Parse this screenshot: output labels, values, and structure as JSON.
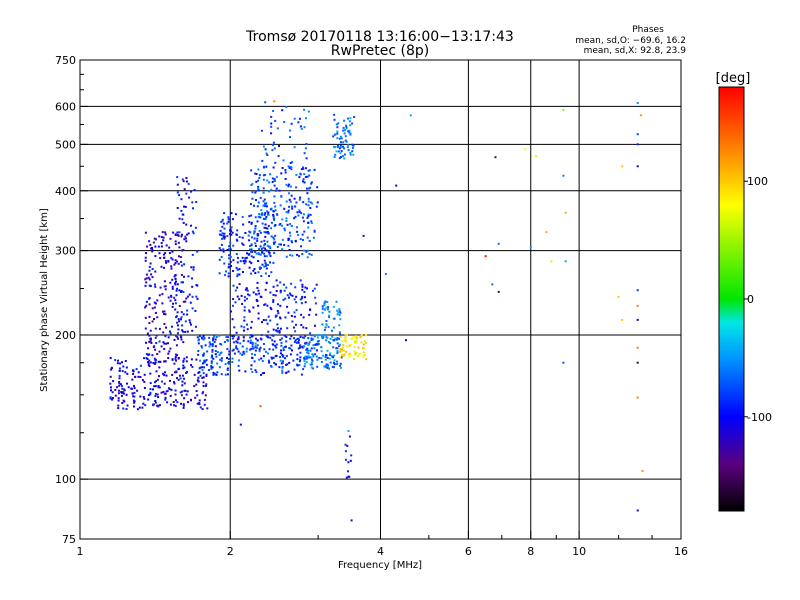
{
  "chart_data": {
    "type": "scatter",
    "title": "Tromsø 20170118 13:16:00−13:17:43",
    "subtitle": "RwPretec (8p)",
    "xlabel": "Frequency [MHz]",
    "ylabel": "Stationary phase Virtual Height [km]",
    "x_scale": "log",
    "y_scale": "log",
    "xlim": [
      1,
      16
    ],
    "ylim": [
      75,
      750
    ],
    "x_ticks": [
      1,
      2,
      4,
      6,
      8,
      10,
      16
    ],
    "y_ticks": [
      75,
      100,
      200,
      300,
      400,
      500,
      600,
      750
    ],
    "x_grid": [
      2,
      4,
      6,
      8,
      10
    ],
    "y_grid": [
      100,
      200,
      300,
      400,
      500,
      600
    ],
    "grid": true,
    "legend": {
      "title": "Phases",
      "line1": "mean, sd,O: −69.6, 16.2",
      "line2": "mean, sd,X:  92.8, 23.9",
      "position": "top-right"
    },
    "colorbar": {
      "label": "[deg]",
      "range": [
        -180,
        180
      ],
      "ticks": [
        100,
        0,
        -100
      ],
      "colors": [
        "#000000",
        "#5a0080",
        "#0000ff",
        "#0096ff",
        "#00e6e6",
        "#00e600",
        "#ffff00",
        "#ff9600",
        "#ff0000"
      ]
    },
    "clusters": [
      {
        "x": 1.15,
        "x2": 1.8,
        "y": 140,
        "y2": 180,
        "n": 260,
        "phase": -105
      },
      {
        "x": 1.35,
        "x2": 1.62,
        "y": 175,
        "y2": 330,
        "n": 220,
        "phase": -110
      },
      {
        "x": 1.55,
        "x2": 1.72,
        "y": 200,
        "y2": 440,
        "n": 90,
        "phase": -100
      },
      {
        "x": 1.72,
        "x2": 2.8,
        "y": 165,
        "y2": 200,
        "n": 240,
        "phase": -80
      },
      {
        "x": 2.0,
        "x2": 3.0,
        "y": 185,
        "y2": 260,
        "n": 200,
        "phase": -95
      },
      {
        "x": 1.9,
        "x2": 2.45,
        "y": 265,
        "y2": 360,
        "n": 180,
        "phase": -90
      },
      {
        "x": 2.2,
        "x2": 3.0,
        "y": 290,
        "y2": 450,
        "n": 260,
        "phase": -75
      },
      {
        "x": 2.3,
        "x2": 2.9,
        "y": 430,
        "y2": 600,
        "n": 50,
        "phase": -75
      },
      {
        "x": 2.8,
        "x2": 3.35,
        "y": 170,
        "y2": 200,
        "n": 130,
        "phase": -60
      },
      {
        "x": 3.05,
        "x2": 3.35,
        "y": 200,
        "y2": 235,
        "n": 40,
        "phase": -55
      },
      {
        "x": 3.2,
        "x2": 3.55,
        "y": 465,
        "y2": 580,
        "n": 70,
        "phase": -60
      },
      {
        "x": 3.3,
        "x2": 3.75,
        "y": 178,
        "y2": 200,
        "n": 70,
        "phase": 85
      },
      {
        "x": 3.4,
        "x2": 3.5,
        "y": 100,
        "y2": 124,
        "n": 12,
        "phase": -100
      }
    ],
    "scattered_points": [
      {
        "x": 2.35,
        "y": 612,
        "phase": -75
      },
      {
        "x": 2.45,
        "y": 615,
        "phase": 125
      },
      {
        "x": 4.3,
        "y": 410,
        "phase": -110
      },
      {
        "x": 4.6,
        "y": 575,
        "phase": -40
      },
      {
        "x": 3.7,
        "y": 322,
        "phase": -120
      },
      {
        "x": 4.1,
        "y": 268,
        "phase": -60
      },
      {
        "x": 4.5,
        "y": 195,
        "phase": -110
      },
      {
        "x": 6.5,
        "y": 292,
        "phase": 175
      },
      {
        "x": 6.8,
        "y": 470,
        "phase": -150
      },
      {
        "x": 6.9,
        "y": 310,
        "phase": -60
      },
      {
        "x": 6.7,
        "y": 255,
        "phase": -60
      },
      {
        "x": 6.9,
        "y": 246,
        "phase": -150
      },
      {
        "x": 7.8,
        "y": 488,
        "phase": 80
      },
      {
        "x": 8.2,
        "y": 472,
        "phase": 70
      },
      {
        "x": 8.0,
        "y": 305,
        "phase": -50
      },
      {
        "x": 8.6,
        "y": 328,
        "phase": 110
      },
      {
        "x": 8.8,
        "y": 285,
        "phase": 90
      },
      {
        "x": 9.3,
        "y": 590,
        "phase": 40
      },
      {
        "x": 9.3,
        "y": 430,
        "phase": -60
      },
      {
        "x": 9.4,
        "y": 360,
        "phase": 110
      },
      {
        "x": 9.4,
        "y": 285,
        "phase": -40
      },
      {
        "x": 9.3,
        "y": 175,
        "phase": -70
      },
      {
        "x": 12.2,
        "y": 450,
        "phase": 100
      },
      {
        "x": 12.0,
        "y": 240,
        "phase": 100
      },
      {
        "x": 12.2,
        "y": 215,
        "phase": 100
      },
      {
        "x": 13.1,
        "y": 610,
        "phase": -50
      },
      {
        "x": 13.1,
        "y": 450,
        "phase": -110
      },
      {
        "x": 13.3,
        "y": 575,
        "phase": 120
      },
      {
        "x": 13.1,
        "y": 525,
        "phase": -80
      },
      {
        "x": 13.1,
        "y": 500,
        "phase": -90
      },
      {
        "x": 13.1,
        "y": 248,
        "phase": -80
      },
      {
        "x": 13.1,
        "y": 230,
        "phase": 130
      },
      {
        "x": 13.1,
        "y": 215,
        "phase": -110
      },
      {
        "x": 13.1,
        "y": 188,
        "phase": 130
      },
      {
        "x": 13.1,
        "y": 175,
        "phase": -150
      },
      {
        "x": 13.1,
        "y": 148,
        "phase": 130
      },
      {
        "x": 13.4,
        "y": 104,
        "phase": 120
      },
      {
        "x": 13.1,
        "y": 86,
        "phase": -120
      },
      {
        "x": 3.5,
        "y": 82,
        "phase": -110
      },
      {
        "x": 3.45,
        "y": 126,
        "phase": -40
      },
      {
        "x": 2.1,
        "y": 130,
        "phase": -110
      },
      {
        "x": 2.3,
        "y": 142,
        "phase": 150
      }
    ]
  }
}
